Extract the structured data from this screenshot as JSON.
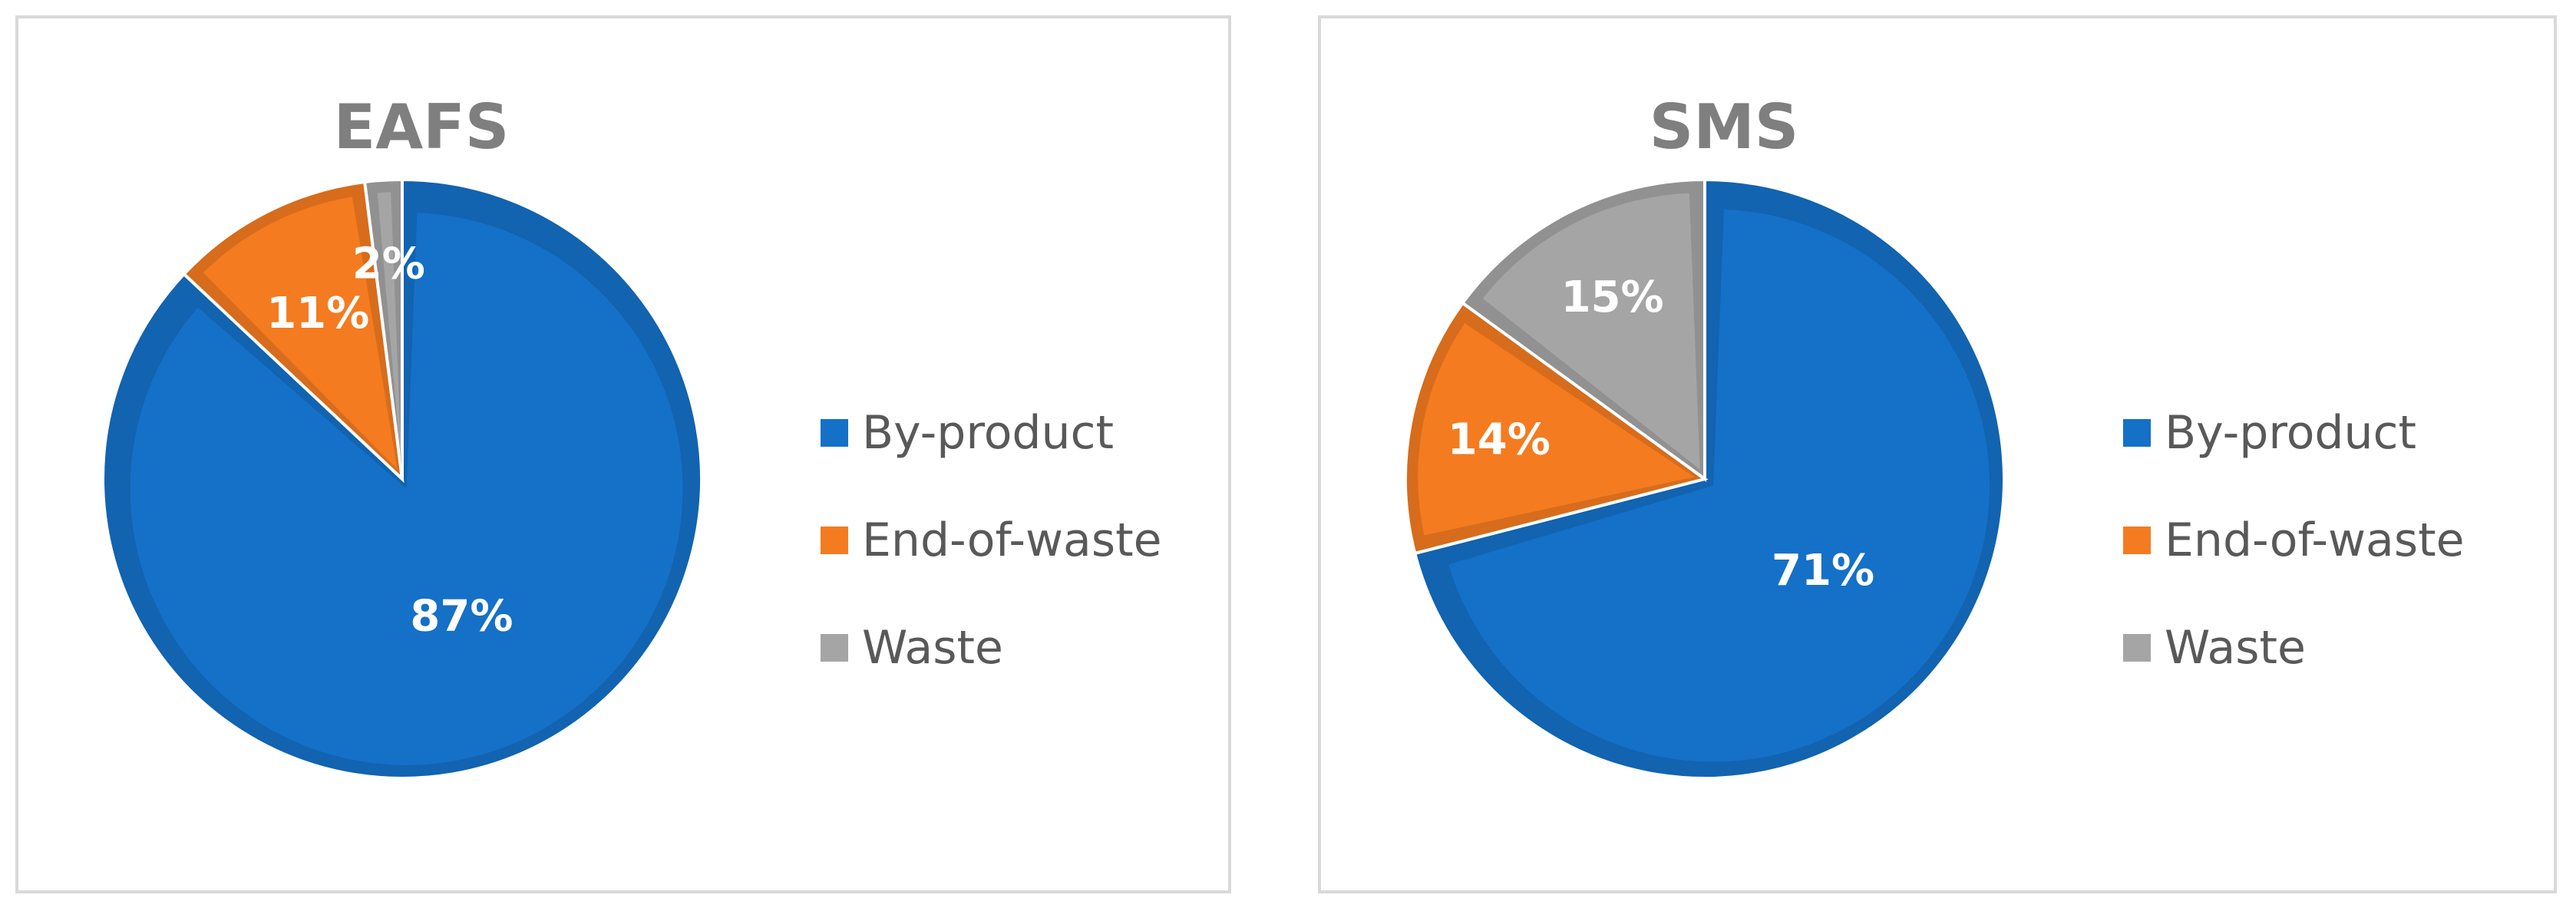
{
  "chart_data": [
    {
      "type": "pie",
      "title": "EAFS",
      "categories": [
        "By-product",
        "End-of-waste",
        "Waste"
      ],
      "values": [
        87,
        11,
        2
      ],
      "data_labels": [
        "87%",
        "11%",
        "2%"
      ],
      "colors": [
        "#1570C8",
        "#F47B20",
        "#A5A5A5"
      ],
      "legend_position": "right"
    },
    {
      "type": "pie",
      "title": "SMS",
      "categories": [
        "By-product",
        "End-of-waste",
        "Waste"
      ],
      "values": [
        71,
        14,
        15
      ],
      "data_labels": [
        "71%",
        "14%",
        "15%"
      ],
      "colors": [
        "#1570C8",
        "#F47B20",
        "#A5A5A5"
      ],
      "legend_position": "right"
    }
  ]
}
